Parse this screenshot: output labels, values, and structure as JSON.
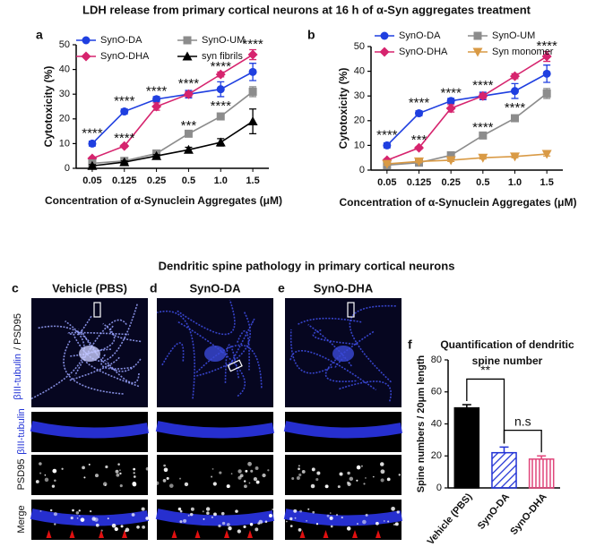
{
  "figure_title": "LDH release from primary cortical neurons at 16 h of α-Syn aggregates treatment",
  "section_title": "Dendritic spine pathology in primary cortical neurons",
  "micrographs": {
    "columns": [
      {
        "panel": "c",
        "title": "Vehicle (PBS)"
      },
      {
        "panel": "d",
        "title": "SynO-DA"
      },
      {
        "panel": "e",
        "title": "SynO-DHA"
      }
    ],
    "top_row_label": [
      "βIII-tubulin",
      "/ PSD95"
    ],
    "row_labels": [
      "βIII-tubulin",
      "PSD95",
      "Merge"
    ]
  },
  "chart_data": [
    {
      "type": "line",
      "panel": "a",
      "xlabel": "Concentration of α-Synuclein Aggregates (μM)",
      "ylabel": "Cytotoxicity (%)",
      "categories": [
        "0.05",
        "0.125",
        "0.25",
        "0.5",
        "1.0",
        "1.5"
      ],
      "ylim": [
        0,
        50
      ],
      "yticks": [
        0,
        10,
        20,
        30,
        40,
        50
      ],
      "series": [
        {
          "name": "SynO-DA",
          "color": "#1f3fe0",
          "marker": "circle",
          "values": [
            10,
            23,
            28,
            30,
            32,
            39
          ],
          "errors": [
            1,
            1,
            1,
            1.5,
            3,
            3.5
          ]
        },
        {
          "name": "SynO-DHA",
          "color": "#d6246e",
          "marker": "diamond",
          "values": [
            4,
            9,
            25,
            30,
            38,
            46
          ],
          "errors": [
            0.5,
            0.5,
            1.5,
            1,
            1,
            2
          ]
        },
        {
          "name": "SynO-UM",
          "color": "#8c8c8c",
          "marker": "square",
          "values": [
            2,
            3,
            6,
            14,
            21,
            31
          ],
          "errors": [
            0.5,
            0.5,
            0.5,
            0.5,
            0.5,
            2
          ]
        },
        {
          "name": "syn fibrils",
          "color": "#000000",
          "marker": "triangle",
          "values": [
            1,
            2.5,
            5,
            7.5,
            10.5,
            19
          ],
          "errors": [
            0.5,
            0.5,
            0.5,
            1,
            1.5,
            5
          ]
        }
      ],
      "annotations": [
        {
          "text": "****",
          "x": "0.05",
          "y": 14
        },
        {
          "text": "****",
          "x": "0.125",
          "y": 27
        },
        {
          "text": "****",
          "x": "0.125",
          "y": 12
        },
        {
          "text": "****",
          "x": "0.25",
          "y": 31
        },
        {
          "text": "****",
          "x": "0.5",
          "y": 34
        },
        {
          "text": "***",
          "x": "0.5",
          "y": 17
        },
        {
          "text": "****",
          "x": "1.0",
          "y": 41
        },
        {
          "text": "****",
          "x": "1.0",
          "y": 25
        },
        {
          "text": "****",
          "x": "1.5",
          "y": 50
        }
      ]
    },
    {
      "type": "line",
      "panel": "b",
      "xlabel": "Concentration of α-Synuclein Aggregates (μM)",
      "ylabel": "Cytotoxicity (%)",
      "categories": [
        "0.05",
        "0.125",
        "0.25",
        "0.5",
        "1.0",
        "1.5"
      ],
      "ylim": [
        0,
        50
      ],
      "yticks": [
        0,
        10,
        20,
        30,
        40,
        50
      ],
      "series": [
        {
          "name": "SynO-DA",
          "color": "#1f3fe0",
          "marker": "circle",
          "values": [
            10,
            23,
            28,
            30,
            32,
            39
          ],
          "errors": [
            1,
            1,
            1,
            1.5,
            3,
            3.5
          ]
        },
        {
          "name": "SynO-DHA",
          "color": "#d6246e",
          "marker": "diamond",
          "values": [
            4,
            9,
            25,
            30,
            38,
            46
          ],
          "errors": [
            0.5,
            0.5,
            1.5,
            1,
            1,
            2
          ]
        },
        {
          "name": "SynO-UM",
          "color": "#8c8c8c",
          "marker": "square",
          "values": [
            2,
            3,
            6,
            14,
            21,
            31
          ],
          "errors": [
            0.5,
            0.5,
            0.5,
            0.5,
            0.5,
            2
          ]
        },
        {
          "name": "Syn monomer",
          "color": "#d99a45",
          "marker": "triangle-down",
          "values": [
            2.5,
            3.5,
            4,
            5,
            5.5,
            6.5
          ],
          "errors": [
            0.5,
            0.5,
            0.5,
            0.5,
            0.5,
            0.8
          ]
        }
      ],
      "annotations": [
        {
          "text": "****",
          "x": "0.05",
          "y": 14
        },
        {
          "text": "****",
          "x": "0.125",
          "y": 27
        },
        {
          "text": "***",
          "x": "0.125",
          "y": 12
        },
        {
          "text": "****",
          "x": "0.25",
          "y": 31
        },
        {
          "text": "****",
          "x": "0.5",
          "y": 34
        },
        {
          "text": "****",
          "x": "0.5",
          "y": 17
        },
        {
          "text": "****",
          "x": "1.0",
          "y": 25
        },
        {
          "text": "****",
          "x": "1.5",
          "y": 50
        }
      ]
    },
    {
      "type": "bar",
      "panel": "f",
      "title": [
        "Quantification of dendritic",
        "spine number"
      ],
      "ylabel": "Spine numbers / 20μm length",
      "categories": [
        "Vehicle (PBS)",
        "SynO-DA",
        "SynO-DHA"
      ],
      "values": [
        50,
        22,
        18
      ],
      "errors": [
        2,
        3.5,
        2
      ],
      "colors": [
        "#000000",
        "#2233d6",
        "#e0457a"
      ],
      "fills": [
        "solid",
        "hatch",
        "hatch"
      ],
      "ylim": [
        0,
        80
      ],
      "yticks": [
        0,
        20,
        40,
        60,
        80
      ],
      "annotations": [
        {
          "text": "**",
          "y": 68
        },
        {
          "text": "n.s",
          "y": 36
        }
      ]
    }
  ]
}
